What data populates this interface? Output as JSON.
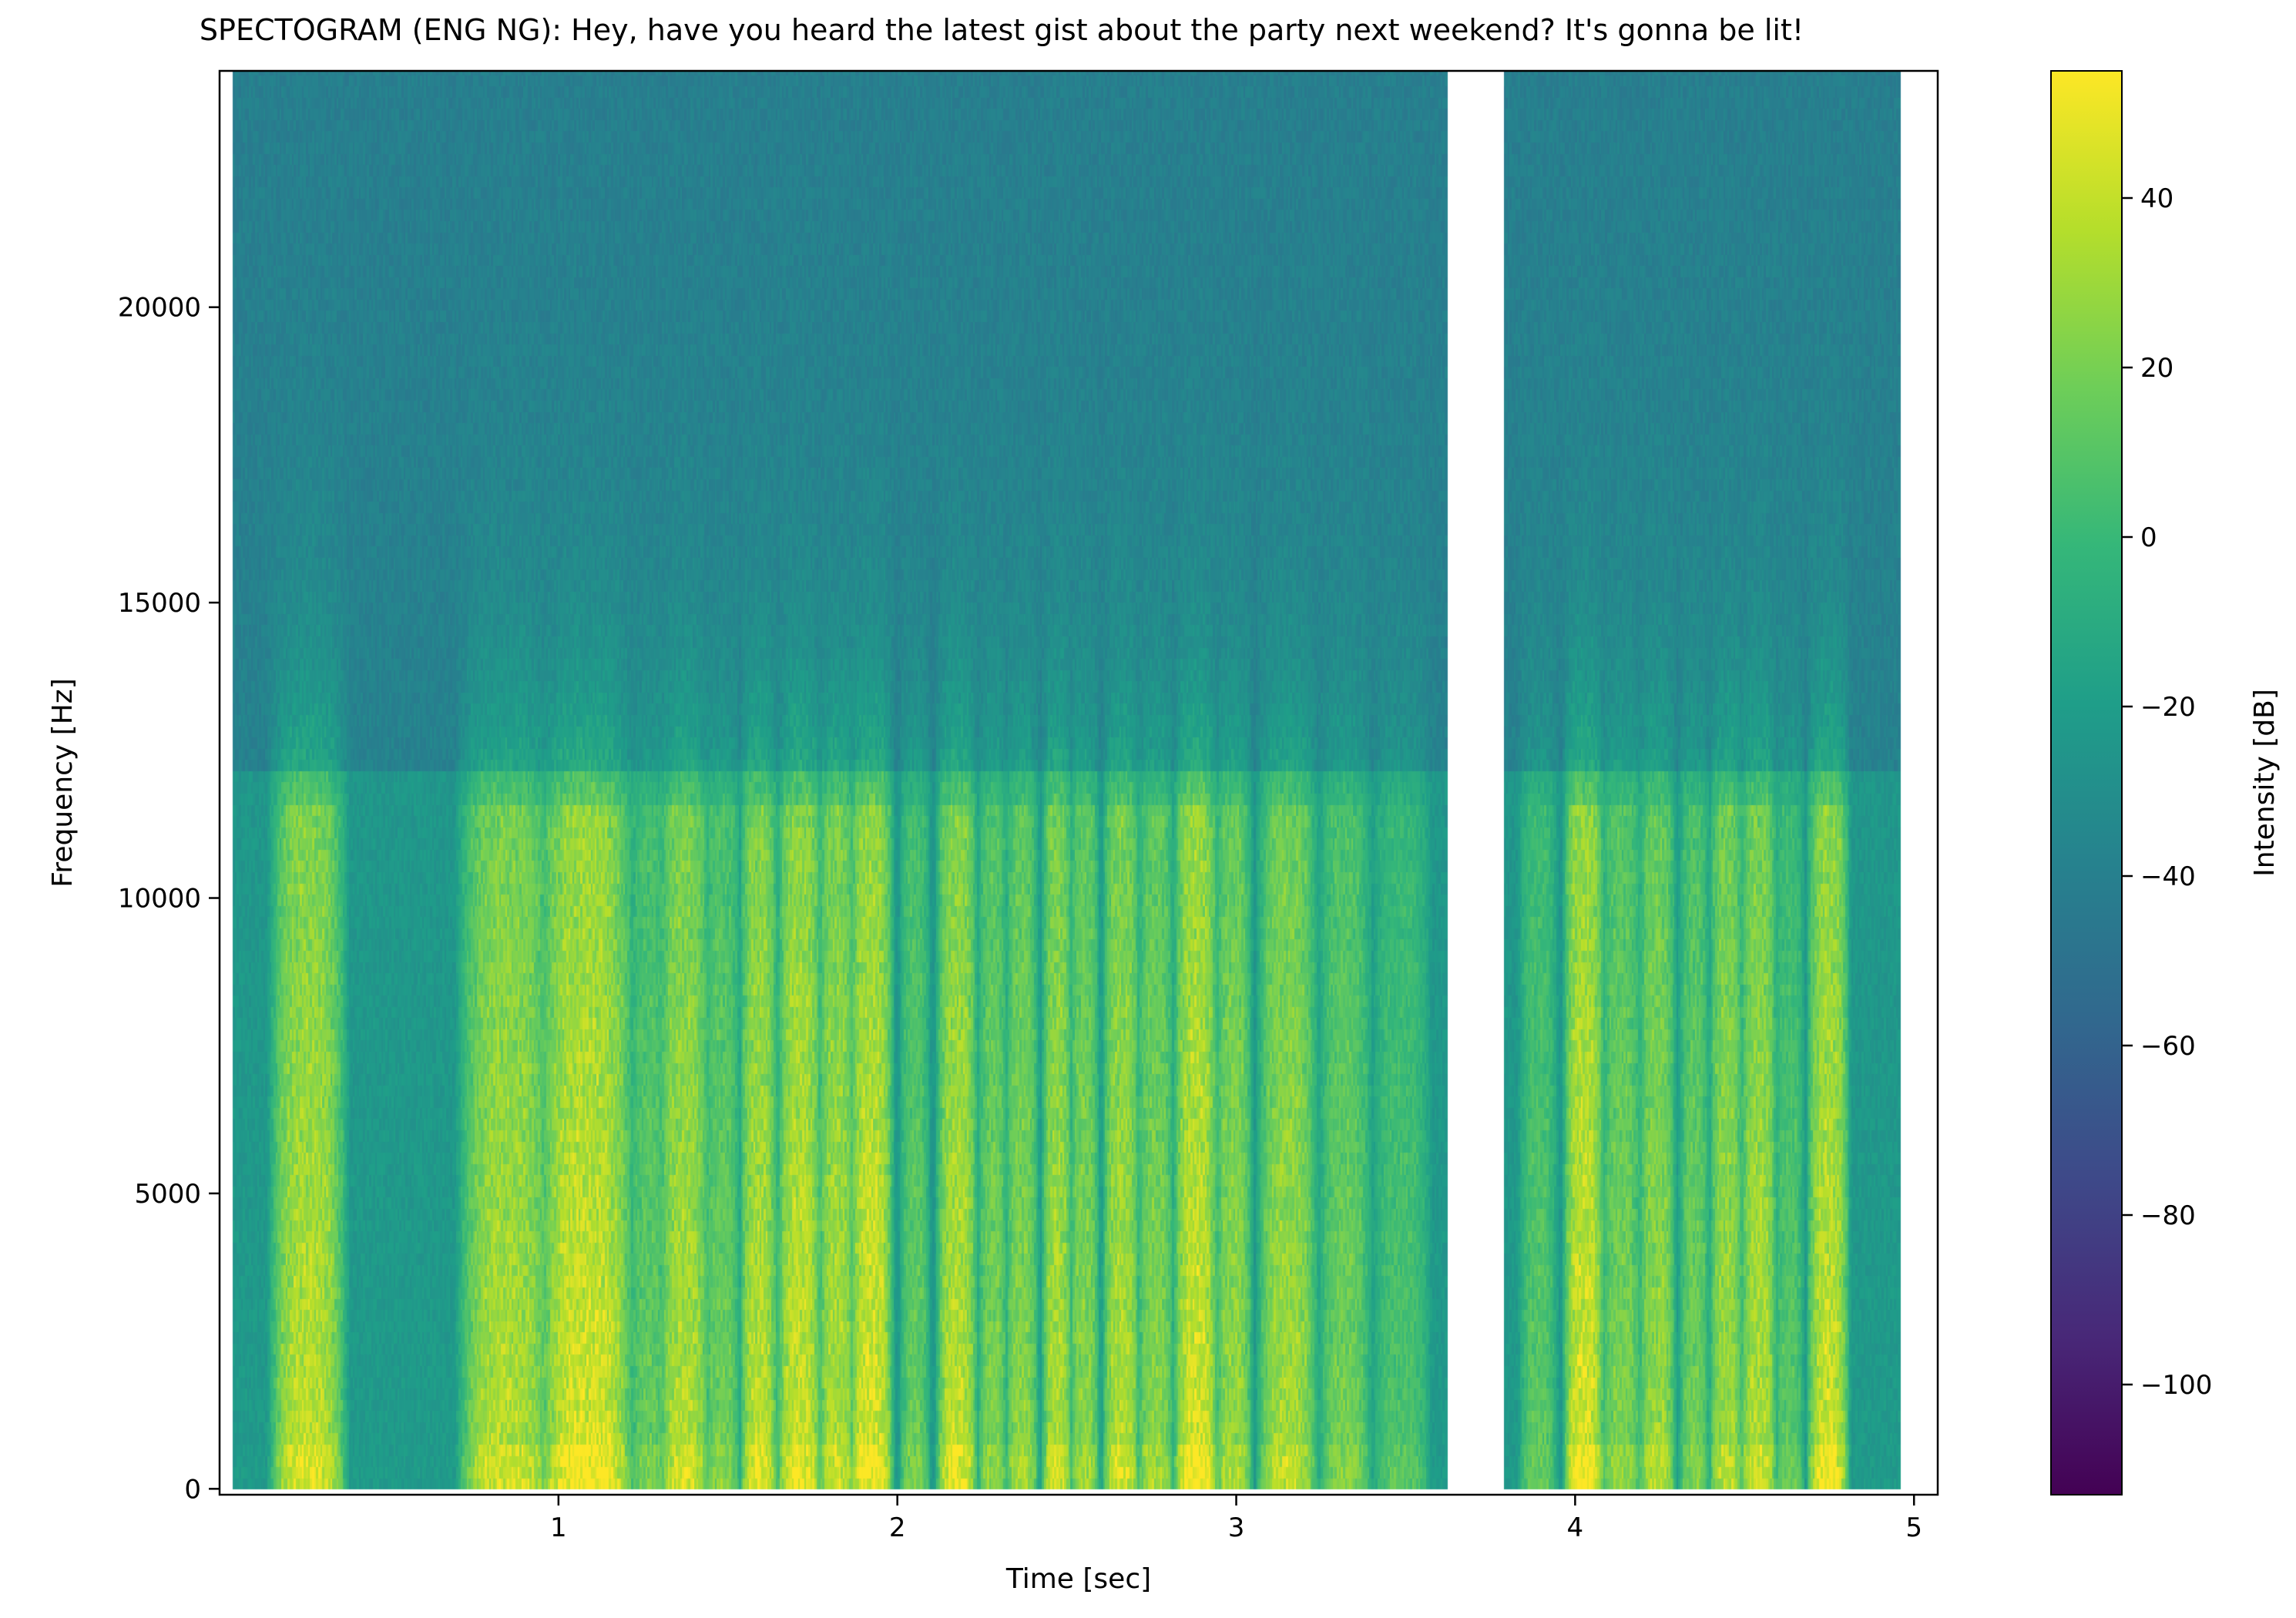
{
  "chart_data": {
    "type": "heatmap",
    "title": "SPECTOGRAM (ENG NG): Hey, have you heard the latest gist about the party next weekend? It's gonna be lit!",
    "xlabel": "Time [sec]",
    "ylabel": "Frequency [Hz]",
    "xlim": [
      0.0,
      5.07
    ],
    "ylim": [
      -100,
      24000
    ],
    "x_ticks": [
      1,
      2,
      3,
      4,
      5
    ],
    "x_tick_labels": [
      "1",
      "2",
      "3",
      "4",
      "5"
    ],
    "y_ticks": [
      0,
      5000,
      10000,
      15000,
      20000
    ],
    "y_tick_labels": [
      "0",
      "5000",
      "10000",
      "15000",
      "20000"
    ],
    "data_segments": [
      {
        "t_start": 0.04,
        "t_end": 3.62
      },
      {
        "t_start": 3.79,
        "t_end": 4.96
      }
    ],
    "voiced_bands_sec": [
      [
        0.17,
        0.35,
        0.9
      ],
      [
        0.73,
        0.96,
        0.85
      ],
      [
        0.96,
        1.2,
        1.0
      ],
      [
        1.22,
        1.31,
        0.55
      ],
      [
        1.31,
        1.43,
        0.85
      ],
      [
        1.44,
        1.52,
        0.6
      ],
      [
        1.55,
        1.63,
        0.9
      ],
      [
        1.66,
        1.76,
        0.95
      ],
      [
        1.78,
        1.86,
        0.85
      ],
      [
        1.87,
        1.97,
        1.0
      ],
      [
        2.02,
        2.08,
        0.55
      ],
      [
        2.13,
        2.22,
        0.9
      ],
      [
        2.25,
        2.31,
        0.65
      ],
      [
        2.33,
        2.4,
        0.7
      ],
      [
        2.44,
        2.5,
        0.85
      ],
      [
        2.52,
        2.58,
        0.7
      ],
      [
        2.62,
        2.7,
        0.85
      ],
      [
        2.72,
        2.8,
        0.7
      ],
      [
        2.83,
        2.93,
        1.0
      ],
      [
        2.95,
        3.03,
        0.75
      ],
      [
        3.08,
        3.22,
        0.8
      ],
      [
        3.26,
        3.38,
        0.6
      ],
      [
        3.42,
        3.55,
        0.45
      ],
      [
        3.85,
        3.93,
        0.5
      ],
      [
        3.98,
        4.07,
        1.0
      ],
      [
        4.09,
        4.18,
        0.65
      ],
      [
        4.2,
        4.28,
        0.75
      ],
      [
        4.32,
        4.38,
        0.6
      ],
      [
        4.41,
        4.48,
        0.8
      ],
      [
        4.5,
        4.58,
        0.85
      ],
      [
        4.6,
        4.66,
        0.5
      ],
      [
        4.7,
        4.79,
        0.95
      ]
    ],
    "colorbar": {
      "label": "Intensity [dB]",
      "range": [
        -113,
        55
      ],
      "ticks": [
        40,
        20,
        0,
        -20,
        -40,
        -60,
        -80,
        -100
      ],
      "tick_labels": [
        "40",
        "20",
        "0",
        "−20",
        "−40",
        "−60",
        "−80",
        "−100"
      ],
      "colormap": "viridis",
      "colors": [
        "#440154",
        "#482878",
        "#3e4989",
        "#31688e",
        "#26828e",
        "#1f9e89",
        "#35b779",
        "#6ece58",
        "#b5de2b",
        "#fde725"
      ]
    }
  }
}
